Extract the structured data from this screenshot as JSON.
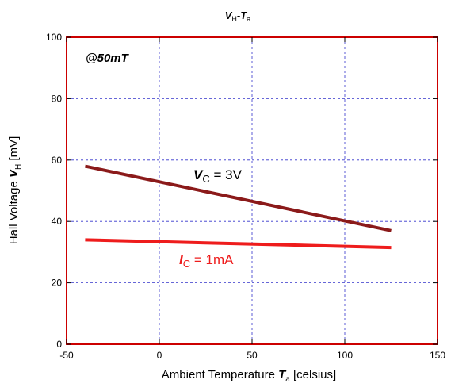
{
  "chart_data": {
    "type": "line",
    "title": {
      "main": "V",
      "sub": "H",
      "sep": "-",
      "main2": "T",
      "sub2": "a"
    },
    "xlabel": {
      "prefix": "Ambient Temperature ",
      "var": "T",
      "sub": "a",
      "suffix": " [celsius]"
    },
    "ylabel": {
      "prefix": "Hall Voltage ",
      "var": "V",
      "sub": "H",
      "suffix": " [mV]"
    },
    "xlim": [
      -50,
      150
    ],
    "ylim": [
      0,
      100
    ],
    "xticks": [
      "-50",
      "0",
      "50",
      "100",
      "150"
    ],
    "yticks": [
      "0",
      "20",
      "40",
      "60",
      "80",
      "100"
    ],
    "grid": true,
    "annotation": "@50mT",
    "series": [
      {
        "label": {
          "var": "V",
          "sub": "C",
          "rest": " = 3V"
        },
        "color": "#8b1a1a",
        "x": [
          -40,
          125
        ],
        "y": [
          58,
          37
        ]
      },
      {
        "label": {
          "var": "I",
          "sub": "C",
          "rest": " = 1mA"
        },
        "color": "#ee1c1c",
        "x": [
          -40,
          125
        ],
        "y": [
          34,
          31.5
        ]
      }
    ],
    "colors": {
      "frame": "#cc0000",
      "grid": "#3333cc"
    }
  }
}
